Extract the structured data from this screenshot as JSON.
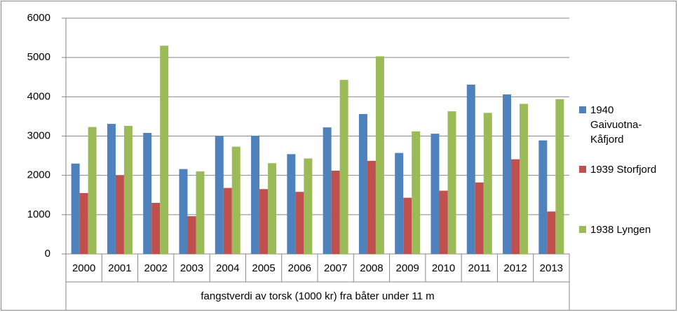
{
  "chart_data": {
    "type": "bar",
    "x_label": "fangstverdi av torsk (1000 kr) fra båter under 11 m",
    "categories": [
      "2000",
      "2001",
      "2002",
      "2003",
      "2004",
      "2005",
      "2006",
      "2007",
      "2008",
      "2009",
      "2010",
      "2011",
      "2012",
      "2013"
    ],
    "series": [
      {
        "name": "1940 Gaivuotna-Kåfjord",
        "color": "#4f81bd",
        "values": [
          2300,
          3310,
          3080,
          2160,
          3000,
          3010,
          2540,
          3220,
          3560,
          2570,
          3060,
          4310,
          4060,
          2890
        ]
      },
      {
        "name": "1939 Storfjord",
        "color": "#c0504d",
        "values": [
          1550,
          2000,
          1300,
          960,
          1680,
          1650,
          1580,
          2120,
          2370,
          1430,
          1610,
          1820,
          2410,
          1080
        ]
      },
      {
        "name": "1938 Lyngen",
        "color": "#9bbb59",
        "values": [
          3230,
          3260,
          5300,
          2100,
          2730,
          2310,
          2430,
          4430,
          5030,
          3120,
          3630,
          3590,
          3820,
          3940
        ]
      }
    ],
    "ylim": [
      0,
      6000
    ],
    "yticks": [
      0,
      1000,
      2000,
      3000,
      4000,
      5000,
      6000
    ],
    "grid": true,
    "legend": "right"
  }
}
